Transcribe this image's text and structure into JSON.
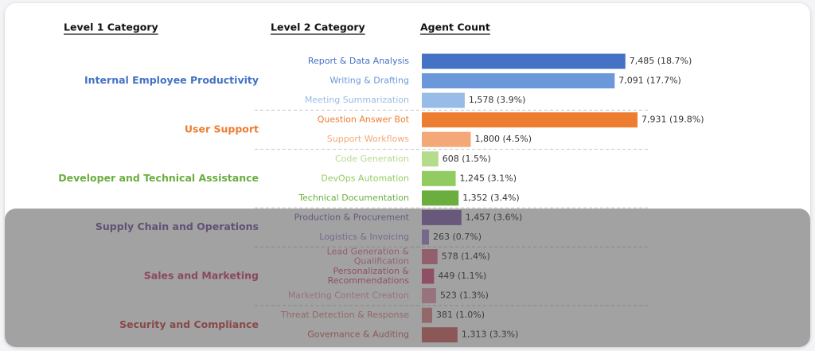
{
  "chart_data": {
    "type": "bar",
    "orientation": "horizontal",
    "headers": {
      "level1": "Level 1 Category",
      "level2": "Level 2 Category",
      "count": "Agent Count"
    },
    "groups": [
      {
        "name": "Internal Employee Productivity",
        "color": "#4472C4",
        "items": [
          {
            "label": "Report & Data Analysis",
            "value": 7485,
            "value_label": "7,485 (18.7%)",
            "color": "#4472C4"
          },
          {
            "label": "Writing & Drafting",
            "value": 7091,
            "value_label": "7,091 (17.7%)",
            "color": "#6A98DA"
          },
          {
            "label": "Meeting Summarization",
            "value": 1578,
            "value_label": "1,578 (3.9%)",
            "color": "#98BCE8"
          }
        ]
      },
      {
        "name": "User Support",
        "color": "#ED7D31",
        "items": [
          {
            "label": "Question Answer Bot",
            "value": 7931,
            "value_label": "7,931 (19.8%)",
            "color": "#ED7D31"
          },
          {
            "label": "Support Workflows",
            "value": 1800,
            "value_label": "1,800 (4.5%)",
            "color": "#F4A878"
          }
        ]
      },
      {
        "name": "Developer and Technical Assistance",
        "color": "#6AAE3F",
        "items": [
          {
            "label": "Code Generation",
            "value": 608,
            "value_label": "608 (1.5%)",
            "color": "#B5DB8C"
          },
          {
            "label": "DevOps Automation",
            "value": 1245,
            "value_label": "1,245 (3.1%)",
            "color": "#92CB62"
          },
          {
            "label": "Technical Documentation",
            "value": 1352,
            "value_label": "1,352 (3.4%)",
            "color": "#6AAE3F"
          }
        ]
      },
      {
        "name": "Supply Chain and Operations",
        "color": "#7E5BA6",
        "items": [
          {
            "label": "Production & Procurement",
            "value": 1457,
            "value_label": "1,457 (3.6%)",
            "color": "#8A6AB3"
          },
          {
            "label": "Logistics & Invoicing",
            "value": 263,
            "value_label": "263 (0.7%)",
            "color": "#A88CD0"
          }
        ]
      },
      {
        "name": "Sales and Marketing",
        "color": "#D1486E",
        "items": [
          {
            "label": "Lead Generation & Qualification",
            "value": 578,
            "value_label": "578 (1.4%)",
            "color": "#E07895"
          },
          {
            "label": "Personalization & Recommendations",
            "value": 449,
            "value_label": "449 (1.1%)",
            "color": "#D85A80"
          },
          {
            "label": "Marketing Content Creation",
            "value": 523,
            "value_label": "523 (1.3%)",
            "color": "#E8A0B6"
          }
        ]
      },
      {
        "name": "Security and Compliance",
        "color": "#CC4A4A",
        "items": [
          {
            "label": "Threat Detection & Response",
            "value": 381,
            "value_label": "381 (1.0%)",
            "color": "#E08A8A"
          },
          {
            "label": "Governance & Auditing",
            "value": 1313,
            "value_label": "1,313 (3.3%)",
            "color": "#D36868"
          }
        ]
      }
    ],
    "xlim": [
      0,
      7931
    ],
    "grid": false,
    "legend": "none",
    "overlay_rows_from": "Production & Procurement"
  }
}
